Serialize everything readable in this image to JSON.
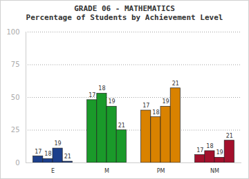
{
  "chart_data": {
    "type": "bar",
    "title": "GRADE 06 - MATHEMATICS",
    "subtitle": "Percentage of Students by Achievement Level",
    "categories": [
      "E",
      "M",
      "PM",
      "NM"
    ],
    "series": [
      {
        "name": "17",
        "values": [
          5,
          48,
          40,
          6
        ]
      },
      {
        "name": "18",
        "values": [
          3,
          53,
          35,
          9
        ]
      },
      {
        "name": "19",
        "values": [
          11,
          43,
          43,
          4
        ]
      },
      {
        "name": "21",
        "values": [
          1,
          25,
          57,
          17
        ]
      }
    ],
    "colors": [
      "#1c3f8c",
      "#1a9a2a",
      "#d98200",
      "#a3102c"
    ],
    "ylim": [
      0,
      100
    ],
    "yticks": [
      0,
      25,
      50,
      75,
      100
    ],
    "grid": true
  }
}
